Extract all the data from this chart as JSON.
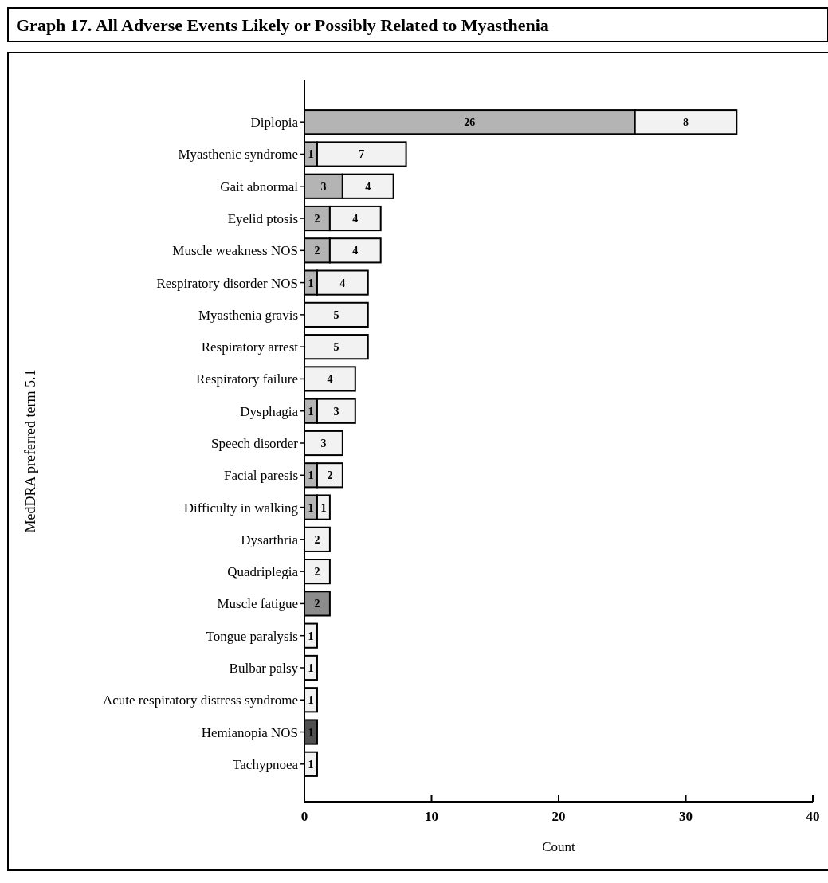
{
  "chart_data": {
    "type": "bar",
    "orientation": "horizontal",
    "stacked": true,
    "title": "Graph 17. All Adverse Events Likely or Possibly Related to Myasthenia",
    "xlabel": "Count",
    "ylabel": "MedDRA preferred term 5.1",
    "categories": [
      "Diplopia",
      "Myasthenic syndrome",
      "Gait abnormal",
      "Eyelid ptosis",
      "Muscle weakness NOS",
      "Respiratory disorder NOS",
      "Myasthenia gravis",
      "Respiratory arrest",
      "Respiratory failure",
      "Dysphagia",
      "Speech disorder",
      "Facial paresis",
      "Difficulty in walking",
      "Dysarthria",
      "Quadriplegia",
      "Muscle fatigue",
      "Tongue paralysis",
      "Bulbar palsy",
      "Acute respiratory distress syndrome",
      "Hemianopia NOS",
      "Tachypnoea"
    ],
    "series": [
      {
        "colors": [
          "#b4b4b4",
          "#b4b4b4",
          "#b4b4b4",
          "#b4b4b4",
          "#b4b4b4",
          "#b4b4b4",
          null,
          null,
          null,
          "#b4b4b4",
          null,
          "#b4b4b4",
          "#b4b4b4",
          null,
          null,
          "#8c8c8c",
          null,
          null,
          null,
          "#505050",
          null
        ],
        "values": [
          26,
          1,
          3,
          2,
          2,
          1,
          null,
          null,
          null,
          1,
          null,
          1,
          1,
          null,
          null,
          2,
          null,
          null,
          null,
          1,
          null
        ]
      },
      {
        "color": "#f2f2f2",
        "values": [
          8,
          7,
          4,
          4,
          4,
          4,
          5,
          5,
          4,
          3,
          3,
          2,
          1,
          2,
          2,
          null,
          1,
          1,
          1,
          null,
          1
        ]
      }
    ],
    "xlim": [
      0,
      40
    ],
    "xticks": [
      0,
      10,
      20,
      30,
      40
    ],
    "grid": false,
    "data_labels": true
  }
}
